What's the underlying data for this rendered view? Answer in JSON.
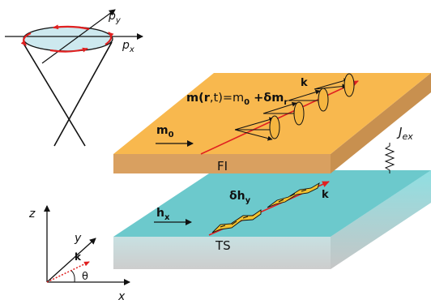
{
  "labels": {
    "py": "p",
    "py_sub": "y",
    "px": "p",
    "px_sub": "x",
    "magnetization_lhs": "m(",
    "magnetization_r": "r",
    "magnetization_mid": ",t)=m",
    "magnetization_sub0": "0",
    "magnetization_plus": " +δm",
    "magnetization_subr": "r",
    "k_fi": "k",
    "m0": "m",
    "m0_sub": "0",
    "fi": "FI",
    "jex": "J",
    "jex_sub": "ex",
    "dhy": "δh",
    "dhy_sub": "y",
    "k_ts": "k",
    "hx": "h",
    "hx_sub": "x",
    "ts": "TS",
    "z_axis": "z",
    "y_axis": "y",
    "x_axis": "x",
    "k_axes": "k",
    "theta": "θ"
  },
  "colors": {
    "fi_top": "#f8b84e",
    "fi_side": "#d9a060",
    "ts_top": "#6cc9cc",
    "ts_side_top": "#a6e8ea",
    "ts_side_bottom": "#cccccc",
    "arrow_red": "#e02020",
    "disc_fill": "#cde9ef",
    "cone_fill": "#f5b540",
    "spin_yellow": "#f2c230"
  }
}
